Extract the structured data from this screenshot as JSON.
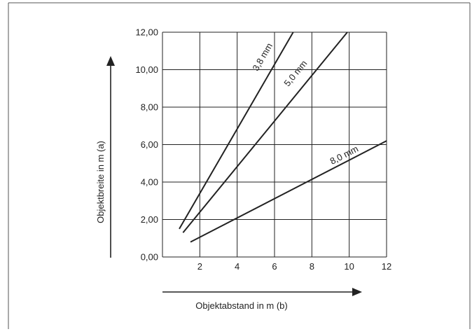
{
  "chart_data": {
    "type": "line",
    "xlabel": "Objektabstand in m (b)",
    "ylabel": "Objektbreite in m (a)",
    "xlim": [
      0,
      12
    ],
    "ylim": [
      0,
      12
    ],
    "x_ticks": [
      {
        "value": 2,
        "label": "2"
      },
      {
        "value": 4,
        "label": "4"
      },
      {
        "value": 6,
        "label": "6"
      },
      {
        "value": 8,
        "label": "8"
      },
      {
        "value": 10,
        "label": "10"
      },
      {
        "value": 12,
        "label": "12"
      }
    ],
    "y_ticks": [
      {
        "value": 0,
        "label": "0,00"
      },
      {
        "value": 2,
        "label": "2,00"
      },
      {
        "value": 4,
        "label": "4,00"
      },
      {
        "value": 6,
        "label": "6,00"
      },
      {
        "value": 8,
        "label": "8,00"
      },
      {
        "value": 10,
        "label": "10,00"
      },
      {
        "value": 12,
        "label": "12,00"
      }
    ],
    "grid": true,
    "series": [
      {
        "name": "3,8 mm",
        "x": [
          0.9,
          7.0
        ],
        "y": [
          1.5,
          12.0
        ]
      },
      {
        "name": "5,0 mm",
        "x": [
          1.1,
          9.9
        ],
        "y": [
          1.3,
          12.0
        ]
      },
      {
        "name": "8,0 mm",
        "x": [
          1.5,
          12.0
        ],
        "y": [
          0.8,
          6.2
        ]
      }
    ],
    "annotations": [
      {
        "text": "3,8 mm",
        "x": 5.5,
        "y": 10.6,
        "series": 0
      },
      {
        "text": "5,0 mm",
        "x": 7.25,
        "y": 9.7,
        "series": 1
      },
      {
        "text": "8,0 mm",
        "x": 9.8,
        "y": 5.3,
        "series": 2
      }
    ],
    "colors": {
      "line": "#222222",
      "grid": "#222222",
      "frame": "#555555"
    }
  }
}
